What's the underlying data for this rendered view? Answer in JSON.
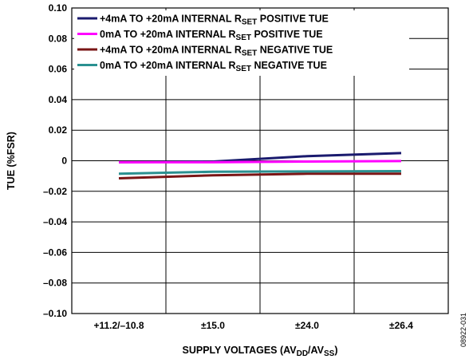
{
  "figure_id": "08922-031",
  "colors": {
    "frame": "#000000",
    "s1": "#1a1a6e",
    "s2": "#ff00ff",
    "s3": "#7a1515",
    "s4": "#2a9090"
  },
  "chart_data": {
    "type": "line",
    "title": "",
    "xlabel": "SUPPLY VOLTAGES (AV_DD/AV_SS)",
    "ylabel": "TUE (%FSR)",
    "categories": [
      "+11.2/–10.8",
      "±15.0",
      "±24.0",
      "±26.4"
    ],
    "ylim": [
      -0.1,
      0.1
    ],
    "yticks": [
      "0.10",
      "0.08",
      "0.06",
      "0.04",
      "0.02",
      "0",
      "–0.02",
      "–0.04",
      "–0.06",
      "–0.08",
      "–0.10"
    ],
    "legend_position": "top-left",
    "grid": true,
    "series": [
      {
        "name": "+4mA TO +20mA INTERNAL R_SET POSITIVE TUE",
        "color": "#1a1a6e",
        "values": [
          -0.001,
          -0.0005,
          0.003,
          0.005
        ]
      },
      {
        "name": "0mA TO +20mA INTERNAL R_SET POSITIVE TUE",
        "color": "#ff00ff",
        "values": [
          -0.001,
          -0.001,
          -0.0005,
          -0.0002
        ]
      },
      {
        "name": "+4mA TO +20mA INTERNAL R_SET NEGATIVE TUE",
        "color": "#7a1515",
        "values": [
          -0.0115,
          -0.0095,
          -0.0085,
          -0.0085
        ]
      },
      {
        "name": "0mA TO +20mA INTERNAL R_SET NEGATIVE TUE",
        "color": "#2a9090",
        "values": [
          -0.0085,
          -0.0072,
          -0.007,
          -0.0068
        ]
      }
    ]
  }
}
